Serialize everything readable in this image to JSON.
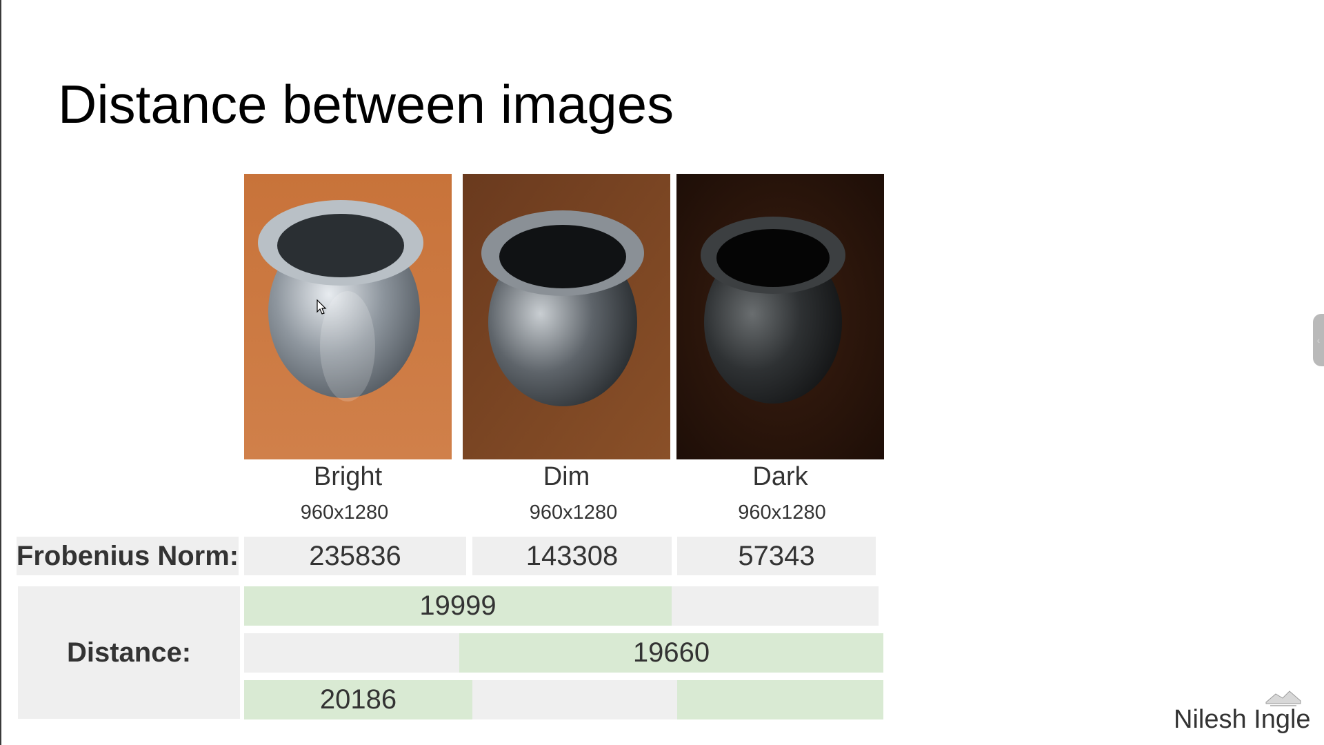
{
  "slide": {
    "title": "Distance between images",
    "author": "Nilesh Ingle"
  },
  "images": [
    {
      "name": "Bright",
      "size": "960x1280",
      "norm": "235836"
    },
    {
      "name": "Dim",
      "size": "960x1280",
      "norm": "143308"
    },
    {
      "name": "Dark",
      "size": "960x1280",
      "norm": "57343"
    }
  ],
  "table": {
    "norm_label": "Frobenius Norm:",
    "distance_label": "Distance:",
    "distances": [
      "19999",
      "19660",
      "20186"
    ]
  },
  "colors": {
    "highlight": "#d9ead3",
    "cell": "#efefef"
  },
  "icons": {
    "handle": "chevron-left-icon",
    "logo": "logo-icon",
    "cursor": "mouse-pointer-icon"
  }
}
